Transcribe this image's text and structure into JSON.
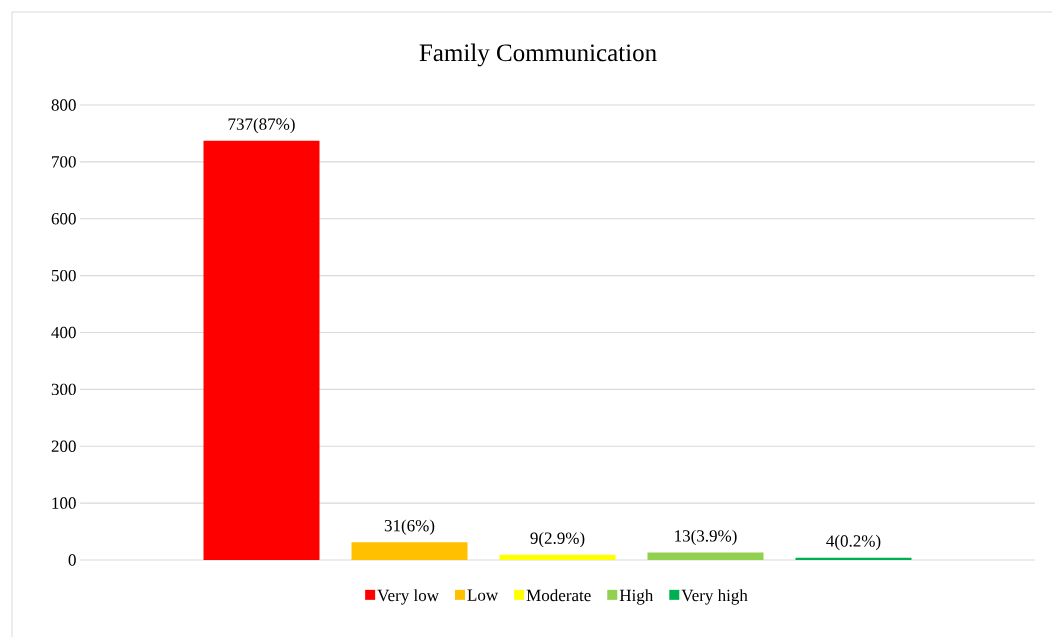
{
  "chart_data": {
    "type": "bar",
    "title": "Family Communication",
    "categories": [
      null
    ],
    "series": [
      {
        "name": "Very low",
        "color": "#ff0000",
        "values": [
          737
        ],
        "value_labels": [
          "737(87%)"
        ]
      },
      {
        "name": "Low",
        "color": "#ffc000",
        "values": [
          31
        ],
        "value_labels": [
          "31(6%)"
        ]
      },
      {
        "name": "Moderate",
        "color": "#ffff00",
        "values": [
          9
        ],
        "value_labels": [
          "9(2.9%)"
        ]
      },
      {
        "name": "High",
        "color": "#92d050",
        "values": [
          13
        ],
        "value_labels": [
          "13(3.9%)"
        ]
      },
      {
        "name": "Very high",
        "color": "#00b050",
        "values": [
          4
        ],
        "value_labels": [
          "4(0.2%)"
        ]
      }
    ],
    "ylim": [
      0,
      800
    ],
    "yticks": [
      0,
      100,
      200,
      300,
      400,
      500,
      600,
      700,
      800
    ],
    "grid": "y",
    "legend": "bottom"
  }
}
